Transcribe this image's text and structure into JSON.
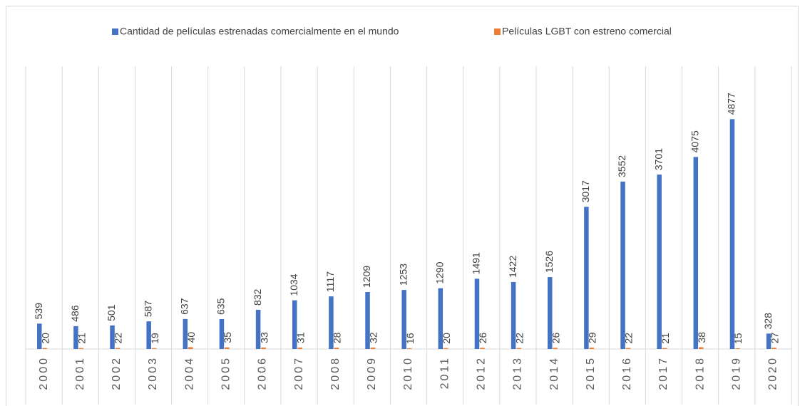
{
  "chart_data": {
    "type": "bar",
    "categories": [
      "2000",
      "2001",
      "2002",
      "2003",
      "2004",
      "2005",
      "2006",
      "2007",
      "2008",
      "2009",
      "2010",
      "2011",
      "2012",
      "2013",
      "2014",
      "2015",
      "2016",
      "2017",
      "2018",
      "2019",
      "2020"
    ],
    "series": [
      {
        "name": "Cantidad de películas estrenadas comercialmente en el mundo",
        "color": "#4472c4",
        "values": [
          539,
          486,
          501,
          587,
          637,
          635,
          832,
          1034,
          1117,
          1209,
          1253,
          1290,
          1491,
          1422,
          1526,
          3017,
          3552,
          3701,
          4075,
          4877,
          328
        ]
      },
      {
        "name": "Películas LGBT con estreno comercial",
        "color": "#ed7d31",
        "values": [
          20,
          21,
          22,
          19,
          40,
          35,
          33,
          31,
          28,
          32,
          16,
          20,
          26,
          22,
          26,
          29,
          22,
          21,
          38,
          15,
          27
        ]
      }
    ],
    "ylim": [
      0,
      6000
    ],
    "legend": "top"
  }
}
